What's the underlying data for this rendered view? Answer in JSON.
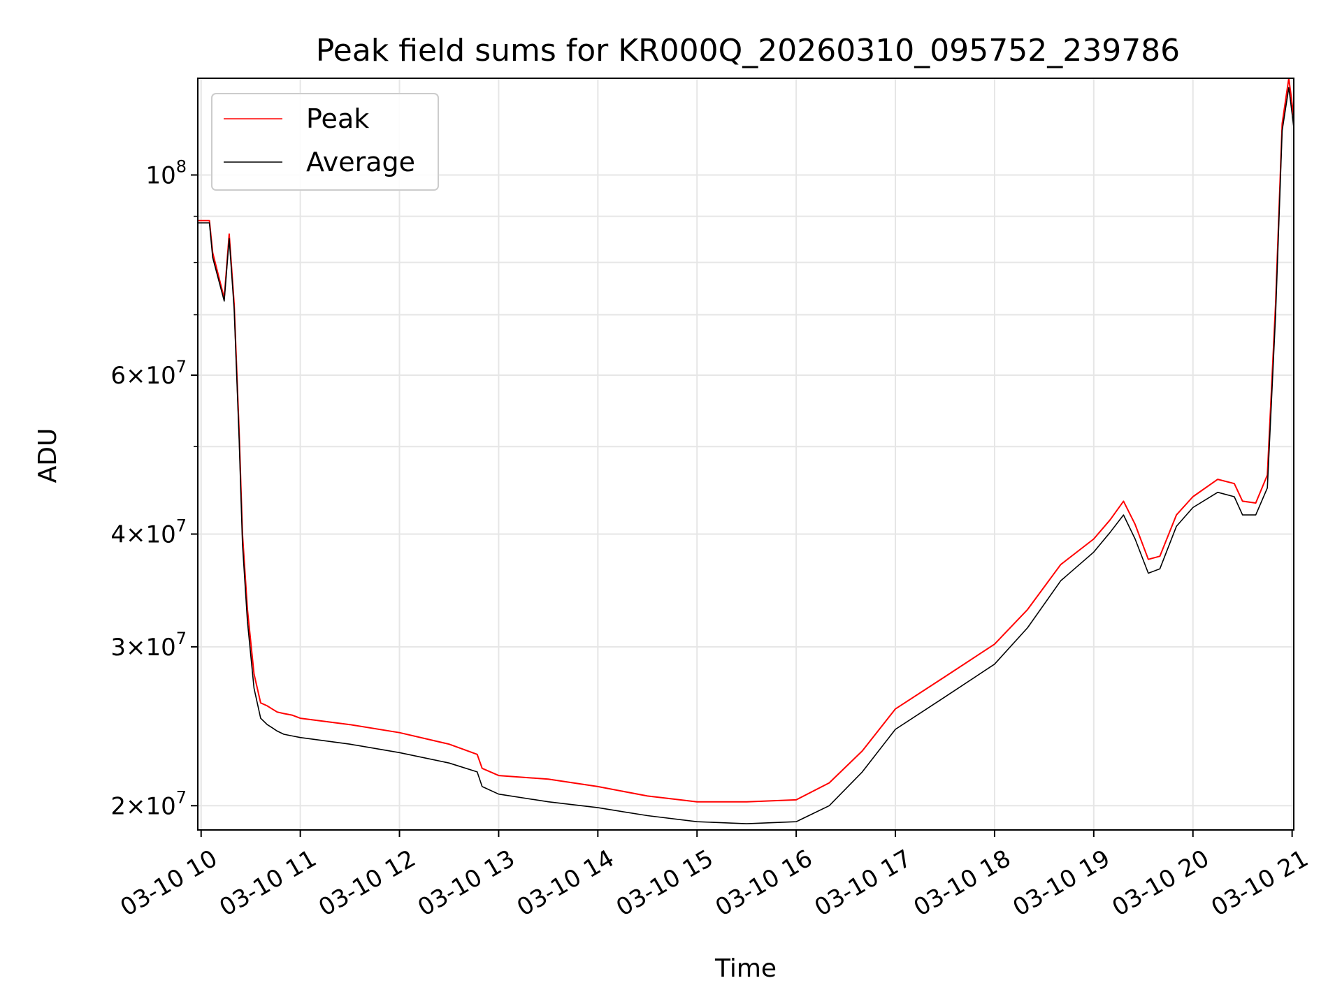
{
  "chart_data": {
    "type": "line",
    "title": "Peak field sums for KR000Q_20260310_095752_239786",
    "xlabel": "Time",
    "ylabel": "ADU",
    "y_scale": "log",
    "grid": true,
    "legend_position": "top-left",
    "xlim": [
      "2026-03-10 09:58",
      "2026-03-10 21:01"
    ],
    "ylim": [
      18800000,
      128000000
    ],
    "x_ticks": [
      "2026-03-10 10:00",
      "2026-03-10 11:00",
      "2026-03-10 12:00",
      "2026-03-10 13:00",
      "2026-03-10 14:00",
      "2026-03-10 15:00",
      "2026-03-10 16:00",
      "2026-03-10 17:00",
      "2026-03-10 18:00",
      "2026-03-10 19:00",
      "2026-03-10 20:00",
      "2026-03-10 21:00"
    ],
    "x_tick_labels": [
      "03-10 10",
      "03-10 11",
      "03-10 12",
      "03-10 13",
      "03-10 14",
      "03-10 15",
      "03-10 16",
      "03-10 17",
      "03-10 18",
      "03-10 19",
      "03-10 20",
      "03-10 21"
    ],
    "y_major_ticks": [
      {
        "value": 100000000,
        "mant": "",
        "exp": "8"
      },
      {
        "value": 60000000,
        "mant": "6",
        "exp": "7"
      },
      {
        "value": 40000000,
        "mant": "4",
        "exp": "7"
      },
      {
        "value": 30000000,
        "mant": "3",
        "exp": "7"
      },
      {
        "value": 20000000,
        "mant": "2",
        "exp": "7"
      }
    ],
    "y_minor_gridlines": [
      50000000,
      70000000,
      80000000,
      90000000
    ],
    "series": [
      {
        "name": "Peak",
        "color": "#ff0000",
        "x": [
          "2026-03-10 09:58",
          "2026-03-10 10:05",
          "2026-03-10 10:07",
          "2026-03-10 10:14",
          "2026-03-10 10:17",
          "2026-03-10 10:20",
          "2026-03-10 10:23",
          "2026-03-10 10:25",
          "2026-03-10 10:28",
          "2026-03-10 10:32",
          "2026-03-10 10:36",
          "2026-03-10 10:40",
          "2026-03-10 10:43",
          "2026-03-10 10:46",
          "2026-03-10 10:50",
          "2026-03-10 10:55",
          "2026-03-10 11:00",
          "2026-03-10 11:30",
          "2026-03-10 12:00",
          "2026-03-10 12:30",
          "2026-03-10 12:47",
          "2026-03-10 12:50",
          "2026-03-10 13:00",
          "2026-03-10 13:30",
          "2026-03-10 14:00",
          "2026-03-10 14:30",
          "2026-03-10 15:00",
          "2026-03-10 15:30",
          "2026-03-10 16:00",
          "2026-03-10 16:20",
          "2026-03-10 16:40",
          "2026-03-10 17:00",
          "2026-03-10 17:30",
          "2026-03-10 18:00",
          "2026-03-10 18:20",
          "2026-03-10 18:40",
          "2026-03-10 19:00",
          "2026-03-10 19:10",
          "2026-03-10 19:18",
          "2026-03-10 19:25",
          "2026-03-10 19:33",
          "2026-03-10 19:40",
          "2026-03-10 19:50",
          "2026-03-10 20:00",
          "2026-03-10 20:15",
          "2026-03-10 20:25",
          "2026-03-10 20:30",
          "2026-03-10 20:38",
          "2026-03-10 20:45",
          "2026-03-10 20:50",
          "2026-03-10 20:54",
          "2026-03-10 20:58",
          "2026-03-10 21:01"
        ],
        "y": [
          89000000,
          89000000,
          82000000,
          73000000,
          86000000,
          72000000,
          52000000,
          40000000,
          33000000,
          28000000,
          26000000,
          25800000,
          25600000,
          25400000,
          25300000,
          25200000,
          25000000,
          24600000,
          24100000,
          23400000,
          22800000,
          22000000,
          21600000,
          21400000,
          21000000,
          20500000,
          20200000,
          20200000,
          20300000,
          21200000,
          23000000,
          25600000,
          27800000,
          30200000,
          33000000,
          37000000,
          39500000,
          41500000,
          43500000,
          41000000,
          37500000,
          37800000,
          42000000,
          44000000,
          46000000,
          45500000,
          43500000,
          43300000,
          46500000,
          72000000,
          114000000,
          128000000,
          116000000
        ]
      },
      {
        "name": "Average",
        "color": "#000000",
        "x": [
          "2026-03-10 09:58",
          "2026-03-10 10:05",
          "2026-03-10 10:07",
          "2026-03-10 10:14",
          "2026-03-10 10:17",
          "2026-03-10 10:20",
          "2026-03-10 10:23",
          "2026-03-10 10:25",
          "2026-03-10 10:28",
          "2026-03-10 10:32",
          "2026-03-10 10:36",
          "2026-03-10 10:40",
          "2026-03-10 10:43",
          "2026-03-10 10:46",
          "2026-03-10 10:50",
          "2026-03-10 10:55",
          "2026-03-10 11:00",
          "2026-03-10 11:30",
          "2026-03-10 12:00",
          "2026-03-10 12:30",
          "2026-03-10 12:47",
          "2026-03-10 12:50",
          "2026-03-10 13:00",
          "2026-03-10 13:30",
          "2026-03-10 14:00",
          "2026-03-10 14:30",
          "2026-03-10 15:00",
          "2026-03-10 15:30",
          "2026-03-10 16:00",
          "2026-03-10 16:20",
          "2026-03-10 16:40",
          "2026-03-10 17:00",
          "2026-03-10 17:30",
          "2026-03-10 18:00",
          "2026-03-10 18:20",
          "2026-03-10 18:40",
          "2026-03-10 19:00",
          "2026-03-10 19:10",
          "2026-03-10 19:18",
          "2026-03-10 19:25",
          "2026-03-10 19:33",
          "2026-03-10 19:40",
          "2026-03-10 19:50",
          "2026-03-10 20:00",
          "2026-03-10 20:15",
          "2026-03-10 20:25",
          "2026-03-10 20:30",
          "2026-03-10 20:38",
          "2026-03-10 20:45",
          "2026-03-10 20:50",
          "2026-03-10 20:54",
          "2026-03-10 20:58",
          "2026-03-10 21:01"
        ],
        "y": [
          88500000,
          88500000,
          81000000,
          72500000,
          85000000,
          71000000,
          51000000,
          39000000,
          32000000,
          27000000,
          25000000,
          24600000,
          24400000,
          24200000,
          24000000,
          23900000,
          23800000,
          23400000,
          22900000,
          22300000,
          21800000,
          21000000,
          20600000,
          20200000,
          19900000,
          19500000,
          19200000,
          19100000,
          19200000,
          20000000,
          21800000,
          24300000,
          26400000,
          28700000,
          31500000,
          35500000,
          38200000,
          40200000,
          42000000,
          39500000,
          36200000,
          36600000,
          40800000,
          42800000,
          44500000,
          44000000,
          42000000,
          42000000,
          45000000,
          70000000,
          112000000,
          125000000,
          113000000
        ]
      }
    ]
  }
}
